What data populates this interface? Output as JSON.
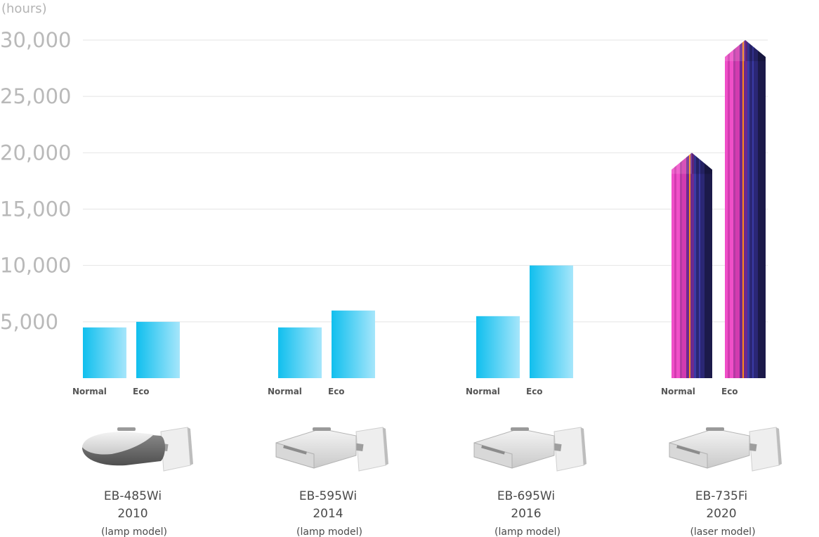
{
  "chart_data": {
    "type": "bar",
    "y_unit_label": "(hours)",
    "y_ticks": [
      5000,
      10000,
      15000,
      20000,
      25000,
      30000
    ],
    "y_tick_labels": [
      "5,000",
      "10,000",
      "15,000",
      "20,000",
      "25,000",
      "30,000"
    ],
    "ylim": [
      0,
      30000
    ],
    "grid": true,
    "series_labels": [
      "Normal",
      "Eco"
    ],
    "groups": [
      {
        "model": "EB-485Wi",
        "year": "2010",
        "type_label": "(lamp model)",
        "kind": "lamp",
        "normal": 4500,
        "eco": 5000
      },
      {
        "model": "EB-595Wi",
        "year": "2014",
        "type_label": "(lamp model)",
        "kind": "lamp",
        "normal": 4500,
        "eco": 6000
      },
      {
        "model": "EB-695Wi",
        "year": "2016",
        "type_label": "(lamp model)",
        "kind": "lamp",
        "normal": 5500,
        "eco": 10000
      },
      {
        "model": "EB-735Fi",
        "year": "2020",
        "type_label": "(laser model)",
        "kind": "laser",
        "normal": 20000,
        "eco": 30000
      }
    ],
    "colors": {
      "lamp_bar_start": "#10bfee",
      "lamp_bar_end": "#a6e6fb",
      "laser_stripes": [
        "#f04fc8",
        "#d23bb0",
        "#b23aa2",
        "#ff8a1a",
        "#6b2a8f",
        "#3b3aa6",
        "#2b2775",
        "#1c1a4a"
      ],
      "gridline": "#e4e4e4",
      "tick_text": "#b9b9b9",
      "label_text": "#555555"
    }
  },
  "icons": [
    "projector-icon"
  ]
}
